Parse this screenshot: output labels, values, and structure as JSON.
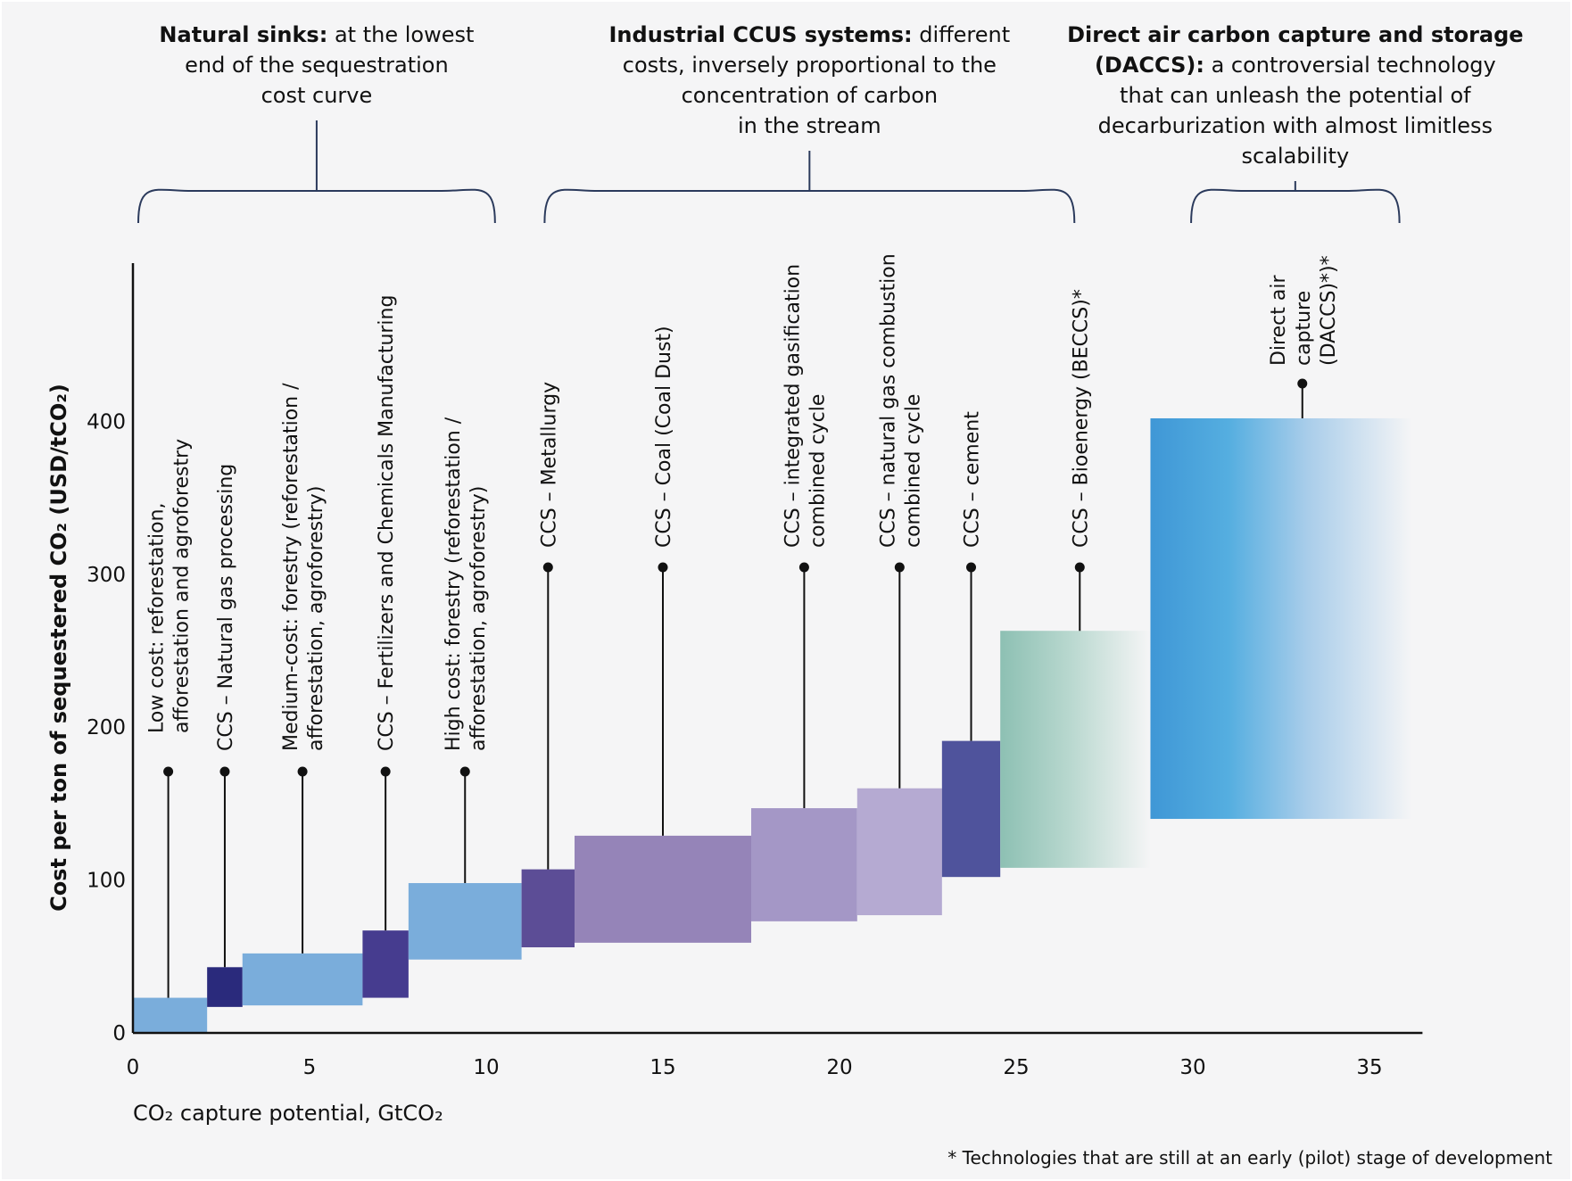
{
  "chart_data": {
    "type": "bar",
    "subtype": "marginal-abatement-cost-curve",
    "title": "",
    "xlabel": "CO₂ capture potential, GtCO₂",
    "ylabel": "Cost per ton of sequestered CO₂ (USD/tCO₂)",
    "xlim": [
      0,
      36.5
    ],
    "ylim": [
      0,
      500
    ],
    "xticks": [
      0,
      5,
      10,
      15,
      20,
      25,
      30,
      35
    ],
    "yticks": [
      0,
      100,
      200,
      300,
      400
    ],
    "grid": false,
    "footnote": "* Technologies that are still at an early (pilot) stage of development",
    "series": [
      {
        "name": "Low cost: reforestation, afforestation and agroforestry",
        "label_lines": [
          "Low cost: reforestation,",
          "afforestation and agroforestry"
        ],
        "x_start": 0,
        "x_end": 2.1,
        "cost_low": 0,
        "cost_high": 23,
        "color": "#7aaddb",
        "pilot": false
      },
      {
        "name": "CCS – Natural gas processing",
        "label_lines": [
          "CCS – Natural gas processing"
        ],
        "x_start": 2.1,
        "x_end": 3.1,
        "cost_low": 17,
        "cost_high": 43,
        "color": "#2a2a7c",
        "pilot": false
      },
      {
        "name": "Medium-cost: forestry (reforestation / afforestation, agroforestry)",
        "label_lines": [
          "Medium-cost: forestry (reforestation /",
          "afforestation, agroforestry)"
        ],
        "x_start": 3.1,
        "x_end": 6.5,
        "cost_low": 18,
        "cost_high": 52,
        "color": "#7aaddb",
        "pilot": false
      },
      {
        "name": "CCS – Fertilizers and Chemicals Manufacturing",
        "label_lines": [
          "CCS – Fertilizers and Chemicals Manufacturing"
        ],
        "x_start": 6.5,
        "x_end": 7.8,
        "cost_low": 23,
        "cost_high": 67,
        "color": "#463c8f",
        "pilot": false
      },
      {
        "name": "High cost: forestry (reforestation / afforestation, agroforestry)",
        "label_lines": [
          "High cost: forestry (reforestation /",
          "afforestation, agroforestry)"
        ],
        "x_start": 7.8,
        "x_end": 11.0,
        "cost_low": 48,
        "cost_high": 98,
        "color": "#7aaddb",
        "pilot": false
      },
      {
        "name": "CCS – Metallurgy",
        "label_lines": [
          "CCS – Metallurgy"
        ],
        "x_start": 11.0,
        "x_end": 12.5,
        "cost_low": 56,
        "cost_high": 107,
        "color": "#5c4d96",
        "pilot": false
      },
      {
        "name": "CCS – Coal (Coal Dust)",
        "label_lines": [
          "CCS – Coal (Coal Dust)"
        ],
        "x_start": 12.5,
        "x_end": 17.5,
        "cost_low": 59,
        "cost_high": 129,
        "color": "#9584b8",
        "pilot": false
      },
      {
        "name": "CCS – integrated gasification combined cycle",
        "label_lines": [
          "CCS – integrated gasification",
          "combined cycle"
        ],
        "x_start": 17.5,
        "x_end": 20.5,
        "cost_low": 73,
        "cost_high": 147,
        "color": "#a497c6",
        "pilot": false
      },
      {
        "name": "CCS – natural gas combustion combined cycle",
        "label_lines": [
          "CCS – natural gas combustion",
          "combined cycle"
        ],
        "x_start": 20.5,
        "x_end": 22.9,
        "cost_low": 77,
        "cost_high": 160,
        "color": "#b5aad2",
        "pilot": false
      },
      {
        "name": "CCS – cement",
        "label_lines": [
          "CCS – cement"
        ],
        "x_start": 22.9,
        "x_end": 24.55,
        "cost_low": 102,
        "cost_high": 191,
        "color": "#4f539c",
        "pilot": false
      },
      {
        "name": "CCS – Bioenergy (BECCS)*",
        "label_lines": [
          "CCS – Bioenergy (BECCS)*"
        ],
        "x_start": 24.55,
        "x_end": 28.8,
        "cost_low": 108,
        "cost_high": 263,
        "color": "#8dc0b3",
        "pilot": true
      },
      {
        "name": "Direct air capture (DACCS)*)*",
        "label_lines": [
          "Direct air",
          "capture",
          "(DACCS)*)*"
        ],
        "x_start": 28.8,
        "x_end": 36.5,
        "cost_low": 140,
        "cost_high": 402,
        "color": "#3f97d6",
        "pilot": true
      }
    ]
  },
  "groups": [
    {
      "bold": "Natural sinks:",
      "lines": [
        "at the lowest",
        "end of the sequestration",
        "cost curve"
      ],
      "x_start": 0,
      "x_end": 10.4
    },
    {
      "bold": "Industrial CCUS systems:",
      "lines": [
        "different",
        "costs, inversely proportional to the",
        "concentration of carbon",
        "in the stream"
      ],
      "x_start": 11.5,
      "x_end": 26.8
    },
    {
      "bold": "Direct air carbon capture and storage",
      "lines": [
        "(DACCS):",
        "a controversial technology",
        "that can unleash the potential of",
        "decarburization with almost limitless",
        "scalability"
      ],
      "x_start": 29.8,
      "x_end": 36.5
    }
  ],
  "colors": {
    "axis": "#111111",
    "text": "#111111",
    "background": "#f5f5f6"
  }
}
